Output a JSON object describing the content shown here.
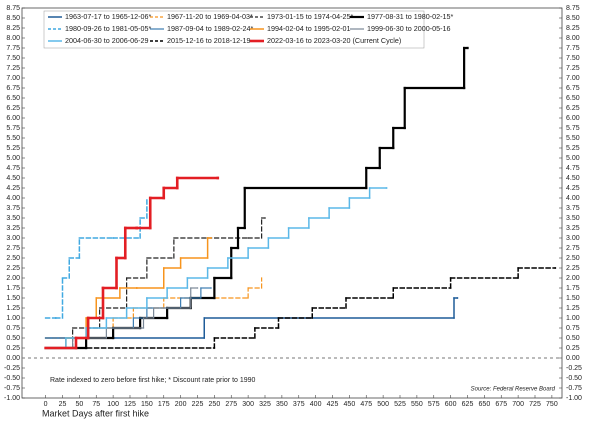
{
  "chart_data": {
    "type": "line",
    "step": true,
    "note": "Rate indexed to zero before first hike; * Discount rate prior to 1990",
    "source": "Source: Federal Reserve Board",
    "x_label": "Market Days after first hike",
    "xlim": [
      -35,
      765
    ],
    "xticks": [
      0,
      25,
      50,
      75,
      100,
      125,
      150,
      175,
      200,
      225,
      250,
      275,
      300,
      325,
      350,
      375,
      400,
      425,
      450,
      475,
      500,
      525,
      550,
      575,
      600,
      625,
      650,
      675,
      700,
      725,
      750
    ],
    "ylim": [
      -1.0,
      8.75
    ],
    "yticks": [
      {
        "value": -1.0,
        "label": "-1.00"
      },
      -0.75,
      {
        "value": -0.5,
        "label": "-0.50"
      },
      -0.25,
      {
        "value": 0,
        "label": "0.00"
      },
      0.25,
      {
        "value": 0.5,
        "label": "0.50"
      },
      0.75,
      {
        "value": 1,
        "label": "1.00"
      },
      1.25,
      {
        "value": 1.5,
        "label": "1.50"
      },
      1.75,
      {
        "value": 2,
        "label": "2.00"
      },
      2.25,
      {
        "value": 2.5,
        "label": "2.50"
      },
      2.75,
      {
        "value": 3,
        "label": "3.00"
      },
      3.25,
      {
        "value": 3.5,
        "label": "3.50"
      },
      3.75,
      {
        "value": 4,
        "label": "4.00"
      },
      4.25,
      {
        "value": 4.5,
        "label": "4.50"
      },
      4.75,
      {
        "value": 5,
        "label": "5.00"
      },
      5.25,
      {
        "value": 5.5,
        "label": "5.50"
      },
      5.75,
      {
        "value": 6,
        "label": "6.00"
      },
      6.25,
      {
        "value": 6.5,
        "label": "6.50"
      },
      6.75,
      {
        "value": 7,
        "label": "7.00"
      },
      7.25,
      {
        "value": 7.5,
        "label": "7.50"
      },
      7.75,
      {
        "value": 8,
        "label": "8.00"
      },
      8.25,
      {
        "value": 8.5,
        "label": "8.50"
      },
      8.75
    ],
    "zero_line": true,
    "series": [
      {
        "name": "1963-07-17 to 1965-12-06*",
        "color": "#1f5c99",
        "dashed": false,
        "width": 1.5,
        "x": [
          0,
          235,
          605,
          610
        ],
        "values": [
          0.5,
          1.0,
          1.5,
          1.5
        ]
      },
      {
        "name": "1967-11-20 to 1969-04-03*",
        "color": "#f7941d",
        "dashed": true,
        "width": 1.2,
        "x": [
          0,
          60,
          100,
          130,
          175,
          230,
          300,
          320
        ],
        "values": [
          0.5,
          0.75,
          1.0,
          1.25,
          1.5,
          1.5,
          1.75,
          2.0
        ]
      },
      {
        "name": "1973-01-15 to 1974-04-25*",
        "color": "#222222",
        "dashed": true,
        "width": 1.2,
        "x": [
          0,
          40,
          80,
          120,
          150,
          190,
          240,
          300,
          320,
          325
        ],
        "values": [
          0.25,
          0.75,
          1.25,
          2.0,
          2.5,
          3.0,
          3.0,
          3.0,
          3.5,
          3.5
        ]
      },
      {
        "name": "1977-08-31 to 1980-02-15*",
        "color": "#000000",
        "dashed": false,
        "width": 2.2,
        "x": [
          0,
          60,
          100,
          140,
          180,
          215,
          250,
          275,
          285,
          295,
          475,
          495,
          515,
          532,
          620,
          625
        ],
        "values": [
          0.25,
          0.5,
          0.75,
          1.0,
          1.25,
          1.5,
          2.0,
          2.75,
          3.25,
          4.25,
          4.75,
          5.25,
          5.75,
          6.75,
          7.75,
          7.75
        ]
      },
      {
        "name": "1980-09-26 to 1981-05-05*",
        "color": "#41a9e1",
        "dashed": true,
        "width": 1.5,
        "x": [
          0,
          15,
          25,
          35,
          50,
          100,
          140,
          150
        ],
        "values": [
          1.0,
          1.0,
          2.0,
          2.5,
          3.0,
          3.0,
          3.5,
          4.0
        ]
      },
      {
        "name": "1987-09-04 to 1989-02-24*",
        "color": "#3b7bb0",
        "dashed": false,
        "width": 1.2,
        "x": [
          0,
          60,
          130,
          150,
          200,
          230,
          245
        ],
        "values": [
          0.5,
          0.75,
          1.0,
          1.25,
          1.5,
          1.75,
          1.75
        ]
      },
      {
        "name": "1994-02-04 to 1995-02-01",
        "color": "#f7941d",
        "dashed": false,
        "width": 1.5,
        "x": [
          0,
          30,
          60,
          75,
          110,
          135,
          175,
          200,
          240,
          245
        ],
        "values": [
          0.25,
          0.5,
          1.0,
          1.5,
          1.75,
          1.75,
          2.25,
          2.5,
          3.0,
          3.0
        ]
      },
      {
        "name": "1999-06-30 to 2000-05-16",
        "color": "#7a8796",
        "dashed": false,
        "width": 1.2,
        "x": [
          0,
          40,
          90,
          145,
          160,
          215,
          225
        ],
        "values": [
          0.25,
          0.5,
          0.75,
          1.0,
          1.25,
          1.75,
          1.75
        ]
      },
      {
        "name": "2004-06-30 to 2006-06-29",
        "color": "#5bb8e8",
        "dashed": false,
        "width": 1.5,
        "x": [
          0,
          30,
          60,
          90,
          120,
          150,
          180,
          210,
          240,
          270,
          300,
          330,
          360,
          390,
          420,
          450,
          480,
          505
        ],
        "values": [
          0.25,
          0.5,
          0.75,
          1.0,
          1.25,
          1.5,
          1.75,
          2.0,
          2.25,
          2.5,
          2.75,
          3.0,
          3.25,
          3.5,
          3.75,
          4.0,
          4.25,
          4.25
        ]
      },
      {
        "name": "2015-12-16 to 2018-12-19",
        "color": "#000000",
        "dashed": true,
        "width": 1.5,
        "x": [
          0,
          250,
          310,
          345,
          395,
          445,
          515,
          600,
          700,
          755
        ],
        "values": [
          0.25,
          0.5,
          0.75,
          1.0,
          1.25,
          1.5,
          1.75,
          2.0,
          2.25,
          2.25
        ]
      },
      {
        "name": "2022-03-16 to 2023-03-20 (Current Cycle)",
        "color": "#e31e24",
        "dashed": false,
        "width": 2.6,
        "x": [
          0,
          45,
          63,
          85,
          105,
          118,
          135,
          155,
          175,
          195,
          255
        ],
        "values": [
          0.25,
          0.5,
          1.0,
          1.75,
          2.5,
          3.25,
          3.25,
          4.0,
          4.25,
          4.5,
          4.5
        ]
      }
    ]
  }
}
